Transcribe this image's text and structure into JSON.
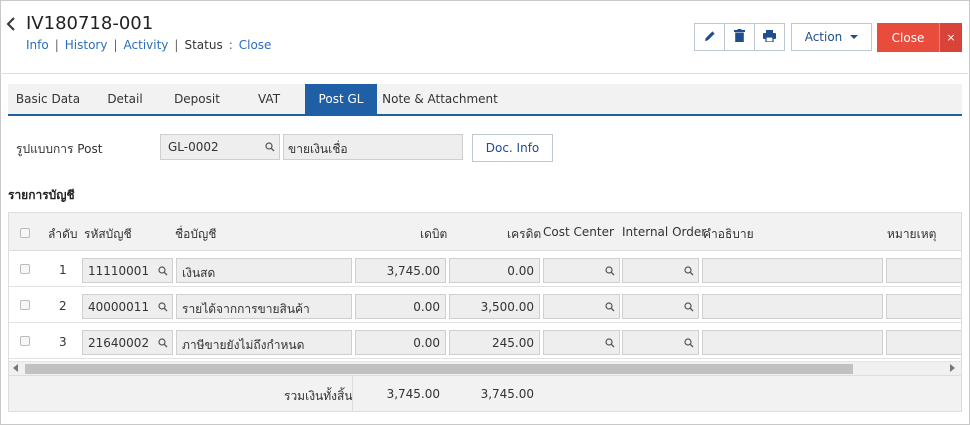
{
  "header": {
    "doc_id": "IV180718-001",
    "subnav": {
      "info": "Info",
      "history": "History",
      "activity": "Activity",
      "status_label": "Status",
      "status_sep": ":",
      "status_value": "Close"
    },
    "separator": "|"
  },
  "toolbar": {
    "action_label": "Action",
    "close_label": "Close",
    "close_x": "×"
  },
  "tabs": [
    "Basic Data",
    "Detail",
    "Deposit",
    "VAT",
    "Post GL",
    "Note & Attachment"
  ],
  "active_tab": "Post GL",
  "post_form": {
    "label": "รูปแบบการ Post",
    "gl_code": "GL-0002",
    "gl_desc": "ขายเงินเชื่อ",
    "doc_info_label": "Doc. Info"
  },
  "accounts": {
    "section_title": "รายการบัญชี",
    "columns": {
      "seq": "ลำดับ",
      "account_code": "รหัสบัญชี",
      "account_name": "ชื่อบัญชี",
      "debit": "เดบิต",
      "credit": "เครดิต",
      "cost_center": "Cost Center",
      "internal_order": "Internal Order",
      "description": "คำอธิบาย",
      "remark": "หมายเหตุ"
    },
    "rows": [
      {
        "seq": "1",
        "account_code": "11110001",
        "account_name": "เงินสด",
        "debit": "3,745.00",
        "credit": "0.00"
      },
      {
        "seq": "2",
        "account_code": "40000011",
        "account_name": "รายได้จากการขายสินค้า",
        "debit": "0.00",
        "credit": "3,500.00"
      },
      {
        "seq": "3",
        "account_code": "21640002",
        "account_name": "ภาษีขายยังไม่ถึงกำหนด",
        "debit": "0.00",
        "credit": "245.00"
      }
    ],
    "footer": {
      "total_label": "รวมเงินทั้งสิ้น",
      "total_debit": "3,745.00",
      "total_credit": "3,745.00"
    }
  },
  "colors": {
    "accent": "#1f5fa6",
    "link": "#2a6ebb",
    "danger": "#e74c3c"
  }
}
